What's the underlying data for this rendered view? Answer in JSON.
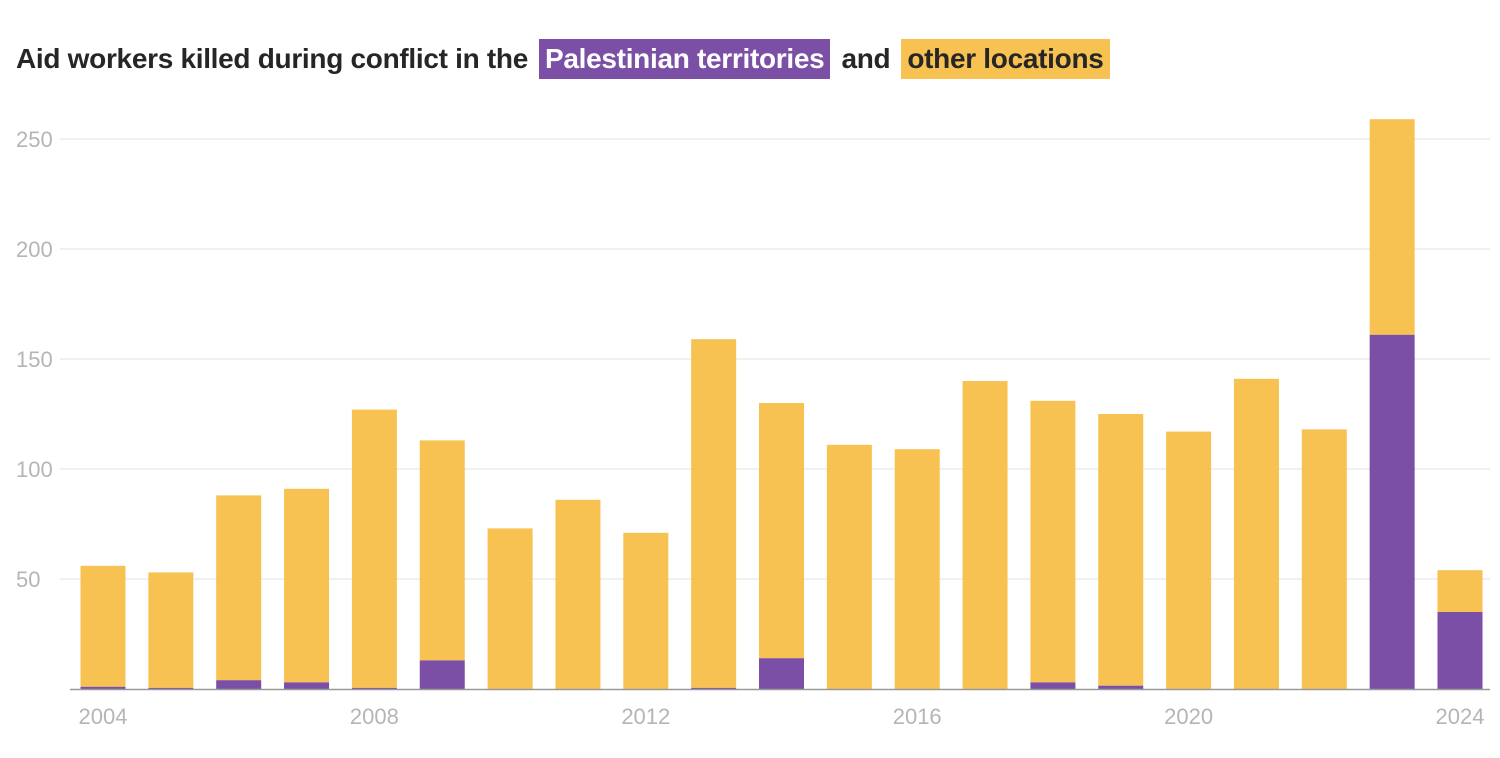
{
  "title": {
    "prefix": "Aid workers killed during conflict in the",
    "series_a_label": "Palestinian territories",
    "middle": "and",
    "series_b_label": "other locations"
  },
  "colors": {
    "palestinian": "#7b4fa6",
    "other": "#f7c252",
    "grid": "#e6e6e6",
    "axis": "#999999",
    "tick_text": "#b5b5b5"
  },
  "chart_data": {
    "type": "bar",
    "stacked": true,
    "title": "Aid workers killed during conflict in the Palestinian territories and other locations",
    "xlabel": "",
    "ylabel": "",
    "categories": [
      2004,
      2005,
      2006,
      2007,
      2008,
      2009,
      2010,
      2011,
      2012,
      2013,
      2014,
      2015,
      2016,
      2017,
      2018,
      2019,
      2020,
      2021,
      2022,
      2023,
      2024
    ],
    "x_tick_labels": [
      "2004",
      "2008",
      "2012",
      "2016",
      "2020",
      "2024"
    ],
    "y_ticks": [
      50,
      100,
      150,
      200,
      250
    ],
    "ylim": [
      0,
      260
    ],
    "grid": true,
    "legend": "in title",
    "series": [
      {
        "name": "Palestinian territories",
        "values": [
          1,
          0.5,
          4,
          3,
          0.5,
          13,
          0,
          0,
          0,
          0.5,
          14,
          0,
          0,
          0,
          3,
          1.5,
          0,
          0,
          0,
          161,
          35
        ]
      },
      {
        "name": "other locations",
        "values": [
          55,
          52.5,
          84,
          88,
          126.5,
          100,
          73,
          86,
          71,
          158.5,
          116,
          111,
          109,
          140,
          128,
          123.5,
          117,
          141,
          118,
          98,
          19
        ]
      }
    ]
  }
}
